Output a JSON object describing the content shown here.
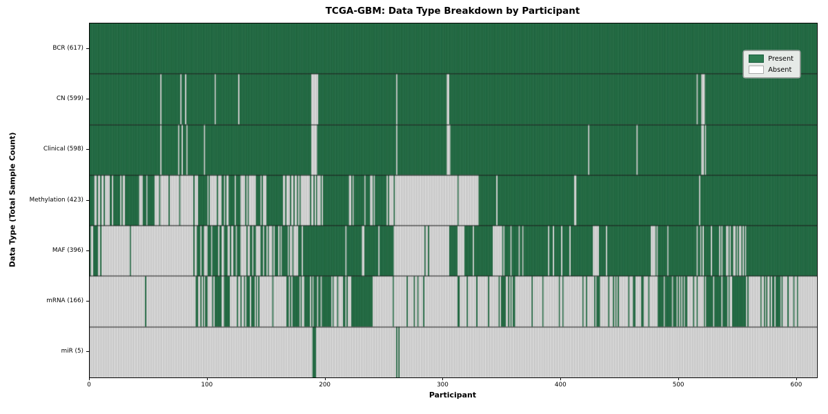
{
  "chart_data": {
    "type": "heatmap",
    "title": "TCGA-GBM: Data Type Breakdown by Participant",
    "xlabel": "Participant",
    "ylabel": "Data Type (Total Sample Count)",
    "x_ticks": [
      0,
      100,
      200,
      300,
      400,
      500,
      600
    ],
    "x_max": 617,
    "grid": false,
    "legend_position": "upper right",
    "legend_entries": [
      {
        "label": "Present",
        "color": "#2e7d52",
        "edge": "#1b5e3f"
      },
      {
        "label": "Absent",
        "color": "#ffffff",
        "edge": "#aaaaaa"
      }
    ],
    "colors": {
      "present_fill": "#2e7d52",
      "present_edge": "#175332",
      "absent_fill": "#fcfcfc",
      "absent_edge": "#9e9e9e",
      "row_separator": "#151515",
      "axis": "#000000"
    },
    "rows": [
      {
        "name": "BCR",
        "total": 617,
        "label": "BCR (617)",
        "segments": [
          [
            0,
            617,
            1
          ]
        ]
      },
      {
        "name": "CN",
        "total": 599,
        "label": "CN (599)",
        "base": "present",
        "absent_columns": [
          60,
          77,
          81,
          106,
          126,
          188,
          189,
          190,
          191,
          192,
          193,
          260,
          303,
          304,
          515,
          519,
          520,
          521
        ]
      },
      {
        "name": "Clinical",
        "total": 598,
        "label": "Clinical (598)",
        "base": "present",
        "absent_columns": [
          60,
          75,
          78,
          82,
          97,
          188,
          189,
          190,
          191,
          192,
          260,
          303,
          304,
          305,
          423,
          464,
          519,
          520,
          522
        ]
      },
      {
        "name": "Methylation",
        "total": 423,
        "label": "Methylation (423)",
        "segments": [
          [
            0,
            10,
            0.5
          ],
          [
            10,
            30,
            0.42
          ],
          [
            30,
            55,
            0.85
          ],
          [
            55,
            92,
            0.08
          ],
          [
            92,
            100,
            1
          ],
          [
            100,
            112,
            0.25
          ],
          [
            112,
            126,
            0.8
          ],
          [
            126,
            151,
            0.3
          ],
          [
            151,
            163,
            1
          ],
          [
            163,
            181,
            0.2
          ],
          [
            181,
            198,
            0.3
          ],
          [
            198,
            255,
            0.88
          ],
          [
            255,
            258,
            0
          ],
          [
            258,
            259,
            1
          ],
          [
            259,
            330,
            0.02
          ],
          [
            330,
            345,
            1
          ],
          [
            345,
            346,
            0
          ],
          [
            346,
            411,
            1
          ],
          [
            411,
            413,
            0
          ],
          [
            413,
            517,
            1
          ],
          [
            517,
            518,
            0
          ],
          [
            518,
            617,
            1
          ]
        ]
      },
      {
        "name": "MAF",
        "total": 396,
        "label": "MAF (396)",
        "segments": [
          [
            0,
            10,
            0.25
          ],
          [
            10,
            88,
            0.06
          ],
          [
            88,
            135,
            0.55
          ],
          [
            135,
            182,
            0.68
          ],
          [
            182,
            258,
            0.96
          ],
          [
            258,
            284,
            0.02
          ],
          [
            284,
            285,
            1
          ],
          [
            285,
            305,
            0.02
          ],
          [
            305,
            312,
            1
          ],
          [
            312,
            318,
            0
          ],
          [
            318,
            342,
            0.9
          ],
          [
            342,
            350,
            0.15
          ],
          [
            350,
            425,
            0.85
          ],
          [
            425,
            432,
            0.2
          ],
          [
            432,
            476,
            0.92
          ],
          [
            476,
            480,
            0.1
          ],
          [
            480,
            540,
            0.92
          ],
          [
            540,
            556,
            0.6
          ],
          [
            556,
            617,
            0.95
          ]
        ]
      },
      {
        "name": "mRNA",
        "total": 166,
        "label": "mRNA (166)",
        "segments": [
          [
            0,
            90,
            0.03
          ],
          [
            90,
            118,
            0.6
          ],
          [
            118,
            132,
            0.15
          ],
          [
            132,
            150,
            0.55
          ],
          [
            150,
            167,
            0.15
          ],
          [
            167,
            205,
            0.75
          ],
          [
            205,
            222,
            0.35
          ],
          [
            222,
            240,
            0.75
          ],
          [
            240,
            311,
            0.06
          ],
          [
            311,
            327,
            0.25
          ],
          [
            327,
            346,
            0.1
          ],
          [
            346,
            362,
            0.65
          ],
          [
            362,
            425,
            0.08
          ],
          [
            425,
            445,
            0.5
          ],
          [
            445,
            480,
            0.12
          ],
          [
            480,
            496,
            0.8
          ],
          [
            496,
            523,
            0.35
          ],
          [
            523,
            559,
            0.75
          ],
          [
            559,
            571,
            0.05
          ],
          [
            571,
            586,
            0.7
          ],
          [
            586,
            617,
            0.08
          ]
        ]
      },
      {
        "name": "miR",
        "total": 5,
        "label": "miR (5)",
        "base": "absent",
        "present_columns": [
          189,
          190,
          191,
          260,
          262
        ]
      }
    ]
  }
}
